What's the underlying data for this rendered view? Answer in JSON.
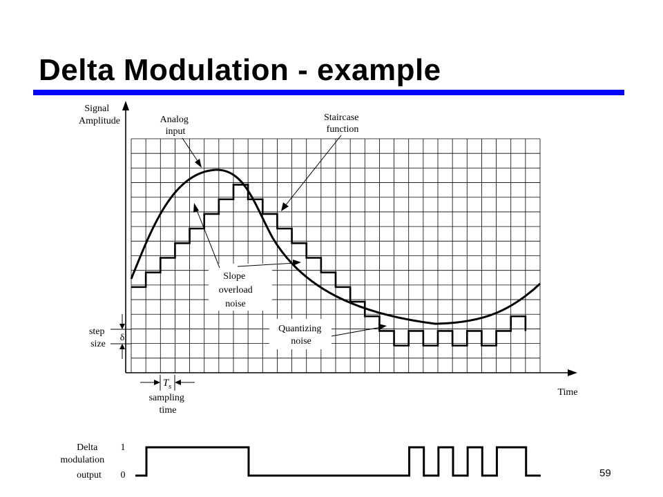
{
  "slide": {
    "title": "Delta Modulation - example",
    "page_number": "59",
    "accent_color": "#0000ff"
  },
  "diagram": {
    "y_axis_label": [
      "Signal",
      "Amplitude"
    ],
    "x_axis_label": "Time",
    "annotations": {
      "analog_input": [
        "Analog",
        "input"
      ],
      "staircase_function": [
        "Staircase",
        "function"
      ],
      "slope_overload_noise": [
        "Slope",
        "overload",
        "noise"
      ],
      "quantizing_noise": [
        "Quantizing",
        "noise"
      ],
      "step_size": [
        "step",
        "size"
      ],
      "delta_symbol": "δ",
      "ts_symbol": "T",
      "ts_subscript": "s",
      "sampling_time": [
        "sampling",
        "time"
      ]
    },
    "output": {
      "label": [
        "Delta",
        "modulation",
        "output"
      ],
      "level_high": "1",
      "level_low": "0"
    },
    "bits": [
      1,
      1,
      1,
      1,
      1,
      1,
      1,
      0,
      0,
      0,
      0,
      0,
      0,
      0,
      0,
      0,
      0,
      0,
      1,
      0,
      1,
      0,
      1,
      0,
      1,
      1,
      0
    ],
    "staircase_start_level": 0
  }
}
